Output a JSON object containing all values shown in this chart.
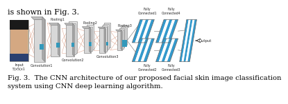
{
  "title_top": "is shown in Fig. 3.",
  "caption": "Fig. 3.  The CNN architecture of our proposed facial skin image classification\nsystem using CNN deep learning algorithm.",
  "background_color": "#ffffff",
  "caption_fontsize": 7.2,
  "title_fontsize": 8.0,
  "diagram": {
    "input_label": "Input\n5(x5(x1",
    "conv1_label": "Convolution1",
    "conv2_label": "Convolution2",
    "conv3_label": "Convolution3",
    "pool1_label": "Pooling1",
    "pool2_label": "Pooling2",
    "pool3_label": "Pooling3",
    "fc1_label": "Fully\nConnected1",
    "fc2_label": "Fully\nConnected2",
    "fc3_label": "Fully\nConnected3",
    "fc4_label": "Fully\nConnected4",
    "output_label": "Output",
    "teal_color": "#3399bb",
    "stripe_blue": "#3399cc",
    "stripe_white": "#ffffff",
    "gray_front": "#d8d8d8",
    "gray_side": "#aaaaaa",
    "gray_top": "#c0c0c0",
    "line_color": "#888888",
    "fan_color": "#cc8866",
    "label_color": "#222222"
  }
}
